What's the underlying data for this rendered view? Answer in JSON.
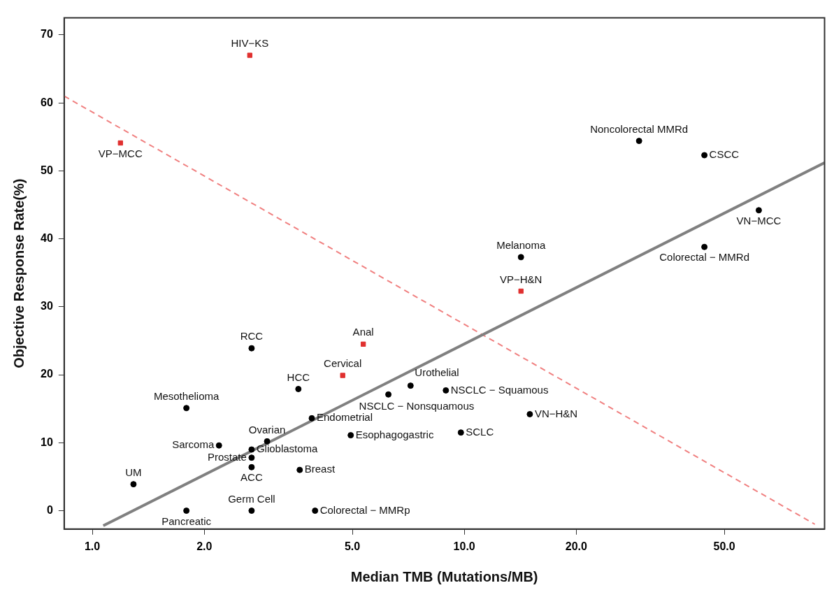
{
  "chart_data": {
    "type": "scatter",
    "xlabel": "Median TMB (Mutations/MB)",
    "ylabel": "Objective Response Rate(%)",
    "log": "x",
    "grid": false,
    "legend": false,
    "xlim": [
      0.84,
      93
    ],
    "ylim": [
      -2.7,
      72.5
    ],
    "xticks": [
      {
        "value": 1,
        "label": "1.0"
      },
      {
        "value": 2,
        "label": "2.0"
      },
      {
        "value": 5,
        "label": "5.0"
      },
      {
        "value": 10,
        "label": "10.0"
      },
      {
        "value": 20,
        "label": "20.0"
      },
      {
        "value": 50,
        "label": "50.0"
      }
    ],
    "yticks": [
      0,
      10,
      20,
      30,
      40,
      50,
      60,
      70
    ],
    "series": [
      {
        "type": "scatter",
        "color": "#000000",
        "marker": "circle",
        "x": [
          29.5,
          44.2,
          61.9,
          44.2,
          14.2,
          2.68,
          3.58,
          7.17,
          6.25,
          8.92,
          15.0,
          1.79,
          3.89,
          4.95,
          9.79,
          2.95,
          2.19,
          2.68,
          2.68,
          2.68,
          3.61,
          1.29,
          1.79,
          2.68,
          3.97
        ],
        "values": [
          54.4,
          52.3,
          44.2,
          38.8,
          37.3,
          23.9,
          17.9,
          18.4,
          17.1,
          17.7,
          14.2,
          15.1,
          13.6,
          11.1,
          11.5,
          10.2,
          9.6,
          9.0,
          7.8,
          6.4,
          6.0,
          3.9,
          0,
          0,
          0
        ]
      },
      {
        "type": "scatter",
        "color": "#e0302f",
        "marker": "square",
        "x": [
          2.65,
          1.19,
          14.2,
          5.35,
          4.71
        ],
        "values": [
          67.0,
          54.1,
          32.3,
          24.5,
          19.9
        ]
      },
      {
        "type": "line",
        "color": "#808080",
        "marker": "none",
        "x": [
          1.07,
          93
        ],
        "values": [
          -2.2,
          51.2
        ]
      },
      {
        "type": "line",
        "color": "#f08080",
        "marker": "none",
        "line_style": "dashed",
        "x": [
          0.84,
          87.6
        ],
        "values": [
          61.0,
          -2.0
        ]
      }
    ],
    "annotations": [
      {
        "text": "HIV−KS",
        "x": 2.65,
        "y": 67.0
      },
      {
        "text": "VP−MCC",
        "x": 1.19,
        "y": 54.1
      },
      {
        "text": "Noncolorectal MMRd",
        "x": 29.5,
        "y": 54.4
      },
      {
        "text": "CSCC",
        "x": 44.2,
        "y": 52.3
      },
      {
        "text": "VN−MCC",
        "x": 61.9,
        "y": 44.2
      },
      {
        "text": "Colorectal − MMRd",
        "x": 44.2,
        "y": 38.8
      },
      {
        "text": "Melanoma",
        "x": 14.2,
        "y": 37.3
      },
      {
        "text": "VP−H&N",
        "x": 14.2,
        "y": 32.3
      },
      {
        "text": "RCC",
        "x": 2.68,
        "y": 23.9
      },
      {
        "text": "Anal",
        "x": 5.35,
        "y": 24.5
      },
      {
        "text": "Cervical",
        "x": 4.71,
        "y": 19.9
      },
      {
        "text": "HCC",
        "x": 3.58,
        "y": 17.9
      },
      {
        "text": "Urothelial",
        "x": 7.17,
        "y": 18.4
      },
      {
        "text": "NSCLC − Nonsquamous",
        "x": 6.25,
        "y": 17.1
      },
      {
        "text": "NSCLC − Squamous",
        "x": 8.92,
        "y": 17.7
      },
      {
        "text": "VN−H&N",
        "x": 15.0,
        "y": 14.2
      },
      {
        "text": "Mesothelioma",
        "x": 1.79,
        "y": 15.1
      },
      {
        "text": "Endometrial",
        "x": 3.89,
        "y": 13.6
      },
      {
        "text": "Esophagogastric",
        "x": 4.95,
        "y": 11.1
      },
      {
        "text": "SCLC",
        "x": 9.79,
        "y": 11.5
      },
      {
        "text": "Ovarian",
        "x": 2.95,
        "y": 10.2
      },
      {
        "text": "Sarcoma",
        "x": 2.19,
        "y": 9.6
      },
      {
        "text": "Glioblastoma",
        "x": 2.68,
        "y": 9.0
      },
      {
        "text": "Prostate",
        "x": 2.68,
        "y": 7.8
      },
      {
        "text": "ACC",
        "x": 2.68,
        "y": 6.4
      },
      {
        "text": "Breast",
        "x": 3.61,
        "y": 6.0
      },
      {
        "text": "UM",
        "x": 1.29,
        "y": 3.9
      },
      {
        "text": "Pancreatic",
        "x": 1.79,
        "y": 0
      },
      {
        "text": "Germ Cell",
        "x": 2.68,
        "y": 0
      },
      {
        "text": "Colorectal − MMRp",
        "x": 3.97,
        "y": 0
      }
    ]
  }
}
